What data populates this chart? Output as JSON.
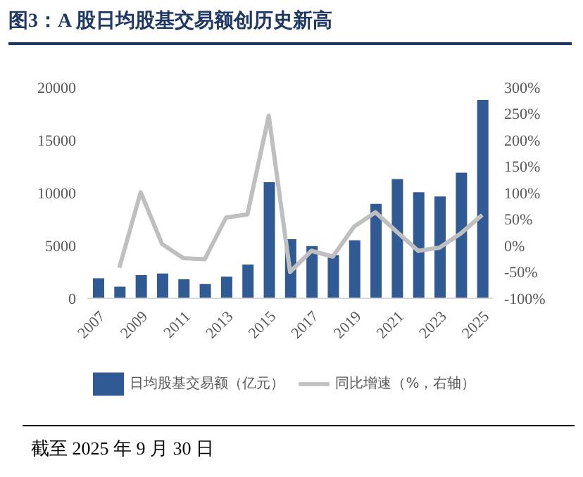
{
  "chart_data": {
    "type": "bar",
    "title": "图3：A 股日均股基交易额创历史新高",
    "categories": [
      "2007",
      null,
      "2009",
      null,
      "2011",
      null,
      "2013",
      null,
      "2015",
      null,
      "2017",
      null,
      "2019",
      null,
      "2021",
      null,
      "2023",
      null,
      "2025"
    ],
    "series": [
      {
        "name": "日均股基交易额（亿元）",
        "color": "#2f5a93",
        "values": [
          1900,
          1100,
          2200,
          2350,
          1800,
          1350,
          2050,
          3200,
          11000,
          5600,
          4950,
          4100,
          5500,
          8950,
          11300,
          10050,
          9650,
          11900,
          18800
        ]
      },
      {
        "name": "同比增速（%，右轴）",
        "type": "line",
        "axis": "y2",
        "color": "#bfbfbf",
        "values": [
          null,
          -42,
          101,
          3,
          -24,
          -26,
          53,
          59,
          246,
          -50,
          -10,
          -21,
          36,
          63,
          26,
          -10,
          -4,
          23,
          58
        ]
      }
    ],
    "ylim": [
      0,
      20000
    ],
    "yticks": [
      0,
      5000,
      10000,
      15000,
      20000
    ],
    "y2lim": [
      -100,
      300
    ],
    "y2ticks": [
      {
        "value": -100,
        "label": "-100%"
      },
      {
        "value": -50,
        "label": "-50%"
      },
      {
        "value": 0,
        "label": "0%"
      },
      {
        "value": 50,
        "label": "50%"
      },
      {
        "value": 100,
        "label": "100%"
      },
      {
        "value": 150,
        "label": "150%"
      },
      {
        "value": 200,
        "label": "200%"
      },
      {
        "value": 250,
        "label": "250%"
      },
      {
        "value": 300,
        "label": "300%"
      }
    ],
    "grid": false,
    "legend": "bottom",
    "marker": "none",
    "annotations": [
      "截至 2025 年 9 月 30 日"
    ]
  }
}
